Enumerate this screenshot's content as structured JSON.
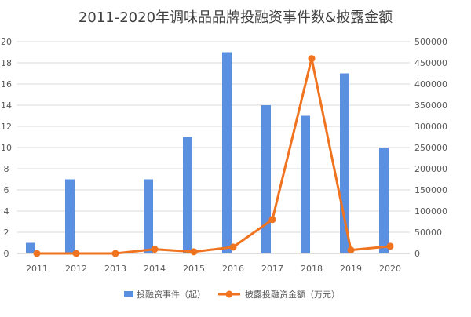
{
  "chart_data": {
    "type": "bar",
    "title": "2011-2020年调味品品牌投融资事件数&披露金额",
    "categories": [
      "2011",
      "2012",
      "2013",
      "2014",
      "2015",
      "2016",
      "2017",
      "2018",
      "2019",
      "2020"
    ],
    "series": [
      {
        "name": "投融资事件（起）",
        "type": "bar",
        "axis": "left",
        "color": "#5B8FE0",
        "values": [
          1,
          7,
          0,
          7,
          11,
          19,
          14,
          13,
          17,
          10
        ]
      },
      {
        "name": "披露投融资金额（万元）",
        "type": "line",
        "axis": "right",
        "color": "#F0731F",
        "values": [
          0,
          0,
          0,
          10000,
          4000,
          15000,
          80000,
          460000,
          8000,
          17000
        ]
      }
    ],
    "y_left": {
      "ticks": [
        "0",
        "2",
        "4",
        "6",
        "8",
        "10",
        "12",
        "14",
        "16",
        "18",
        "20"
      ],
      "range": [
        0,
        20
      ]
    },
    "y_right": {
      "ticks": [
        "0",
        "50000",
        "100000",
        "150000",
        "200000",
        "250000",
        "300000",
        "350000",
        "400000",
        "450000",
        "500000"
      ],
      "range": [
        0,
        500000
      ]
    },
    "grid": true,
    "legend": "bottom"
  }
}
